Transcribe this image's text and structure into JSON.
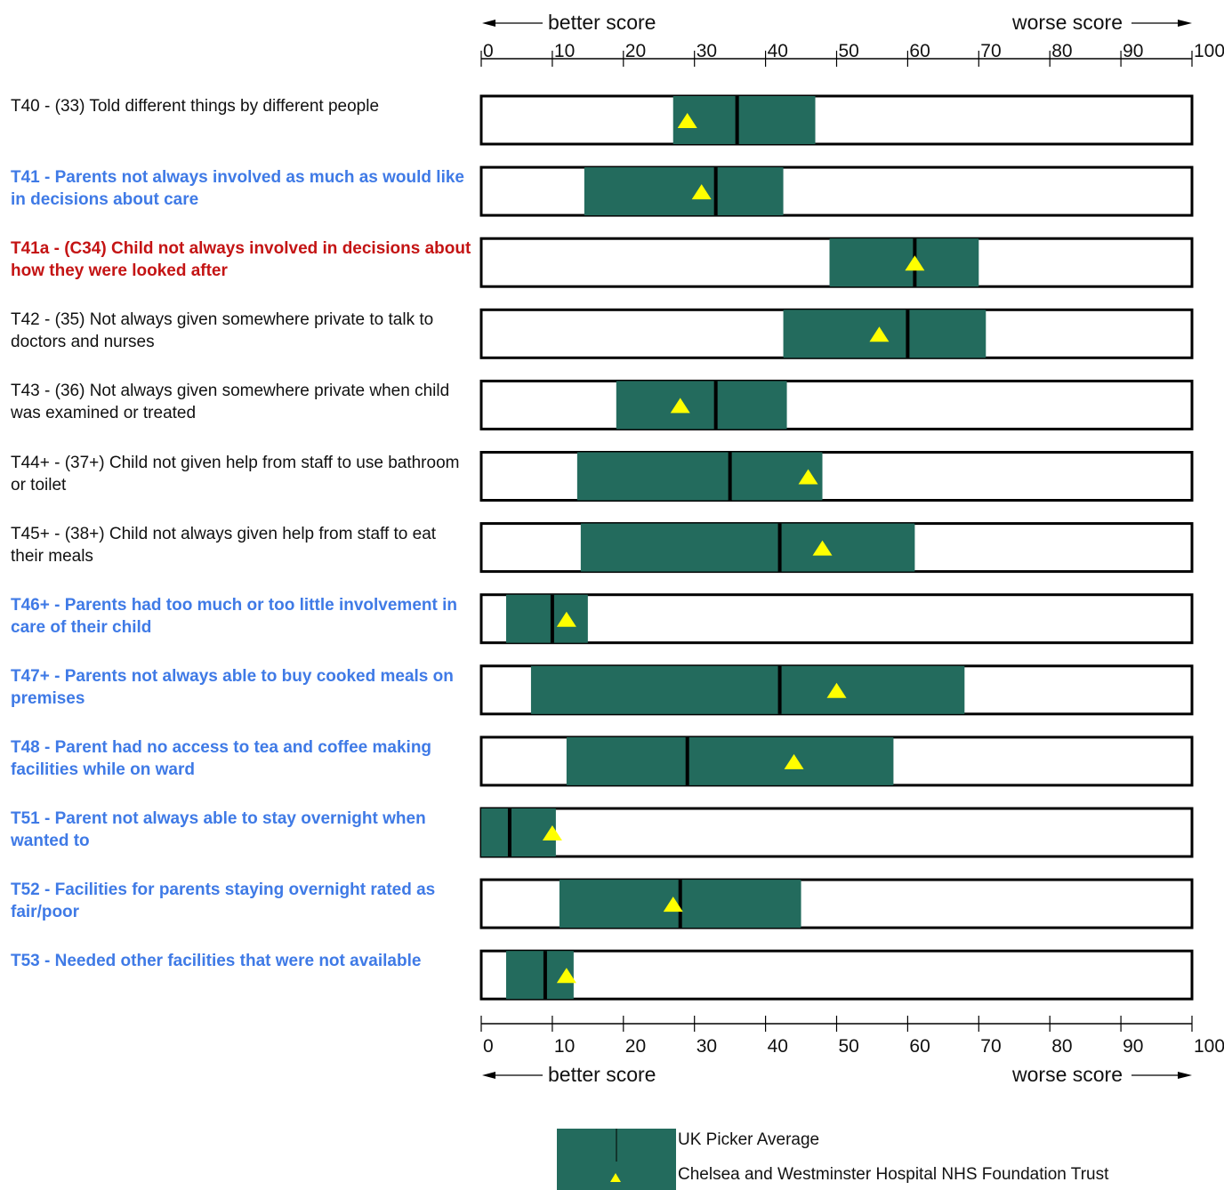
{
  "chart_data": {
    "type": "range-bar",
    "x_axis": {
      "min": 0,
      "max": 100,
      "ticks": [
        0,
        10,
        20,
        30,
        40,
        50,
        60,
        70,
        80,
        90,
        100
      ],
      "tick_labels": [
        "0",
        "10",
        "20",
        "30",
        "40",
        "50",
        "60",
        "70",
        "80",
        "90",
        "100"
      ],
      "left_label": "better score",
      "right_label": "worse score"
    },
    "rows": [
      {
        "label": "T40 - (33) Told different things by different people",
        "style": "normal",
        "range": [
          27,
          47
        ],
        "average": 36,
        "trust": 29
      },
      {
        "label": "T41 - Parents not always involved as much as would like in decisions about care",
        "style": "blue",
        "range": [
          14.5,
          42.5
        ],
        "average": 33,
        "trust": 31
      },
      {
        "label": "T41a - (C34) Child not always involved in decisions about how they were looked after",
        "style": "red",
        "range": [
          49,
          70
        ],
        "average": 61,
        "trust": 61
      },
      {
        "label": "T42 - (35) Not always given somewhere private to talk to doctors and nurses",
        "style": "normal",
        "range": [
          42.5,
          71
        ],
        "average": 60,
        "trust": 56
      },
      {
        "label": "T43 - (36) Not always given somewhere private when child was examined or treated",
        "style": "normal",
        "range": [
          19,
          43
        ],
        "average": 33,
        "trust": 28
      },
      {
        "label": "T44+ - (37+) Child not given help from staff to use bathroom or toilet",
        "style": "normal",
        "range": [
          13.5,
          48
        ],
        "average": 35,
        "trust": 46
      },
      {
        "label": "T45+ - (38+) Child not always given help from staff to eat their meals",
        "style": "normal",
        "range": [
          14,
          61
        ],
        "average": 42,
        "trust": 48
      },
      {
        "label": "T46+ - Parents had too much or too little involvement in care of their child",
        "style": "blue",
        "range": [
          3.5,
          15
        ],
        "average": 10,
        "trust": 12
      },
      {
        "label": "T47+ - Parents not always able to buy cooked meals on premises",
        "style": "blue",
        "range": [
          7,
          68
        ],
        "average": 42,
        "trust": 50
      },
      {
        "label": "T48 - Parent had no access to tea and coffee making facilities while on ward",
        "style": "blue",
        "range": [
          12,
          58
        ],
        "average": 29,
        "trust": 44
      },
      {
        "label": "T51 - Parent not always able to stay overnight when wanted to",
        "style": "blue",
        "range": [
          0,
          10.5
        ],
        "average": 4,
        "trust": 10
      },
      {
        "label": "T52 - Facilities for parents staying overnight rated as fair/poor",
        "style": "blue",
        "range": [
          11,
          45
        ],
        "average": 28,
        "trust": 27
      },
      {
        "label": "T53 - Needed other facilities that were not available",
        "style": "blue",
        "range": [
          3.5,
          13
        ],
        "average": 9,
        "trust": 12
      }
    ],
    "legend": [
      {
        "label": "UK Picker Average",
        "symbol": "range-box-with-average-line"
      },
      {
        "label": "Chelsea and Westminster Hospital NHS Foundation Trust",
        "symbol": "yellow-triangle"
      }
    ]
  },
  "colors": {
    "range_fill": "#236b5d",
    "average_line": "#000000",
    "trust_marker": "#ffff00",
    "blue_label": "#3f7ae6",
    "red_label": "#c41414",
    "normal_label": "#111111"
  }
}
